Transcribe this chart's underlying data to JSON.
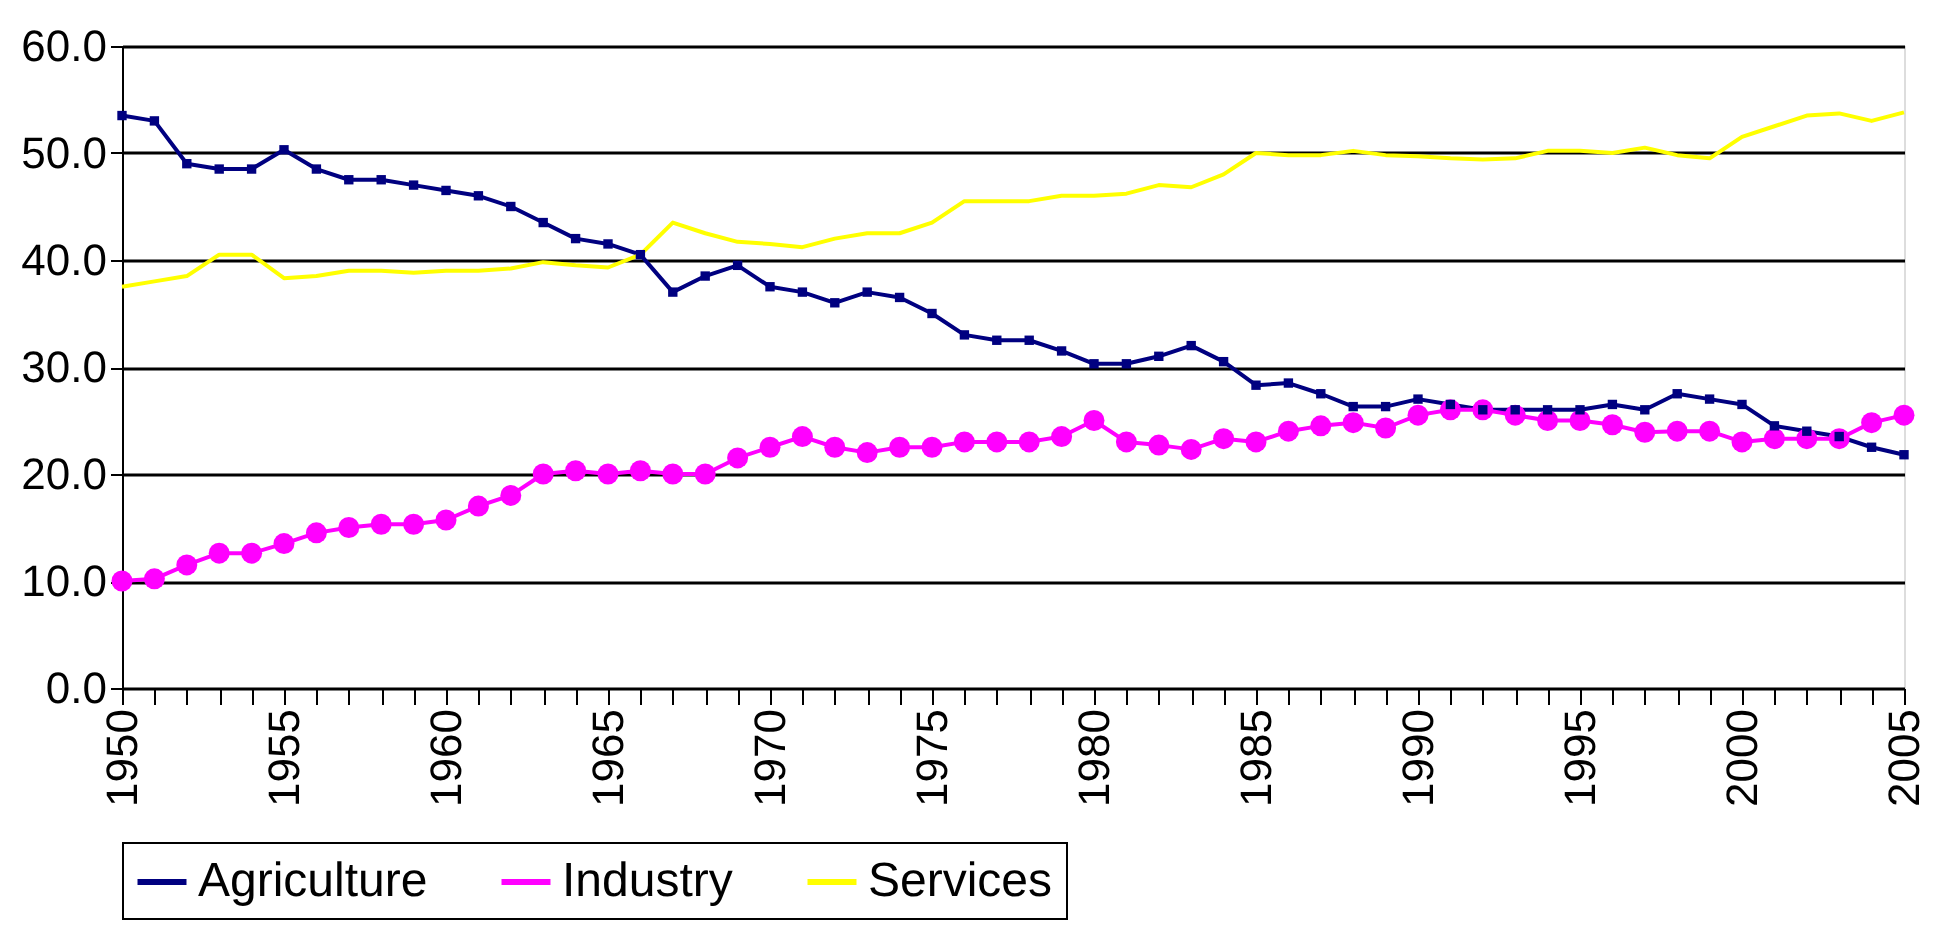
{
  "chart_data": {
    "type": "line",
    "x": [
      1950,
      1951,
      1952,
      1953,
      1954,
      1955,
      1956,
      1957,
      1958,
      1959,
      1960,
      1961,
      1962,
      1963,
      1964,
      1965,
      1966,
      1967,
      1968,
      1969,
      1970,
      1971,
      1972,
      1973,
      1974,
      1975,
      1976,
      1977,
      1978,
      1979,
      1980,
      1981,
      1982,
      1983,
      1984,
      1985,
      1986,
      1987,
      1988,
      1989,
      1990,
      1991,
      1992,
      1993,
      1994,
      1995,
      1996,
      1997,
      1998,
      1999,
      2000,
      2001,
      2002,
      2003,
      2004,
      2005
    ],
    "series": [
      {
        "name": "Agriculture",
        "color": "#000080",
        "marker": "square",
        "values": [
          53.5,
          53,
          49,
          48.5,
          48.5,
          50.3,
          48.5,
          47.5,
          47.5,
          47,
          46.5,
          46,
          45,
          43.5,
          42,
          41.5,
          40.5,
          37,
          38.5,
          39.5,
          37.5,
          37,
          36,
          37,
          36.5,
          35,
          33,
          32.5,
          32.5,
          31.5,
          30.3,
          30.3,
          31,
          32,
          30.5,
          28.3,
          28.5,
          27.5,
          26.3,
          26.3,
          27,
          26.5,
          26,
          26,
          26,
          26,
          26.5,
          26,
          27.5,
          27,
          26.5,
          24.5,
          24,
          23.5,
          22.5,
          21.8
        ]
      },
      {
        "name": "Industry",
        "color": "#ff00ff",
        "marker": "circle",
        "values": [
          10,
          10.2,
          11.5,
          12.6,
          12.6,
          13.5,
          14.5,
          15,
          15.3,
          15.3,
          15.7,
          17,
          18,
          20,
          20.3,
          20,
          20.3,
          20,
          20,
          21.5,
          22.5,
          23.5,
          22.5,
          22,
          22.5,
          22.5,
          23,
          23,
          23,
          23.5,
          25,
          23,
          22.7,
          22.3,
          23.3,
          23,
          24,
          24.5,
          24.8,
          24.3,
          25.5,
          26,
          26,
          25.5,
          25,
          25,
          24.6,
          23.9,
          24,
          24,
          23,
          23.3,
          23.3,
          23.3,
          24.8,
          25.5
        ]
      },
      {
        "name": "Services",
        "color": "#ffff00",
        "marker": "none",
        "values": [
          37.5,
          38,
          38.5,
          40.5,
          40.5,
          38.3,
          38.5,
          39,
          39,
          38.8,
          39,
          39,
          39.2,
          39.8,
          39.5,
          39.3,
          40.5,
          43.5,
          42.5,
          41.7,
          41.5,
          41.2,
          42,
          42.5,
          42.5,
          43.5,
          45.5,
          45.5,
          45.5,
          46,
          46,
          46.2,
          47,
          46.8,
          48,
          50,
          49.8,
          49.8,
          50.2,
          49.8,
          49.7,
          49.5,
          49.4,
          49.5,
          50.2,
          50.2,
          50,
          50.5,
          49.8,
          49.5,
          51.5,
          52.5,
          53.5,
          53.7,
          53,
          53.8
        ]
      }
    ],
    "xlim": [
      1950,
      2005
    ],
    "xticks": [
      1950,
      {
        "value": 1951,
        "label": null
      },
      {
        "value": 1952,
        "label": null
      },
      {
        "value": 1953,
        "label": null
      },
      {
        "value": 1954,
        "label": null
      },
      1955,
      {
        "value": 1956,
        "label": null
      },
      {
        "value": 1957,
        "label": null
      },
      {
        "value": 1958,
        "label": null
      },
      {
        "value": 1959,
        "label": null
      },
      1960,
      {
        "value": 1961,
        "label": null
      },
      {
        "value": 1962,
        "label": null
      },
      {
        "value": 1963,
        "label": null
      },
      {
        "value": 1964,
        "label": null
      },
      1965,
      {
        "value": 1966,
        "label": null
      },
      {
        "value": 1967,
        "label": null
      },
      {
        "value": 1968,
        "label": null
      },
      {
        "value": 1969,
        "label": null
      },
      1970,
      {
        "value": 1971,
        "label": null
      },
      {
        "value": 1972,
        "label": null
      },
      {
        "value": 1973,
        "label": null
      },
      {
        "value": 1974,
        "label": null
      },
      1975,
      {
        "value": 1976,
        "label": null
      },
      {
        "value": 1977,
        "label": null
      },
      {
        "value": 1978,
        "label": null
      },
      {
        "value": 1979,
        "label": null
      },
      1980,
      {
        "value": 1981,
        "label": null
      },
      {
        "value": 1982,
        "label": null
      },
      {
        "value": 1983,
        "label": null
      },
      {
        "value": 1984,
        "label": null
      },
      1985,
      {
        "value": 1986,
        "label": null
      },
      {
        "value": 1987,
        "label": null
      },
      {
        "value": 1988,
        "label": null
      },
      {
        "value": 1989,
        "label": null
      },
      1990,
      {
        "value": 1991,
        "label": null
      },
      {
        "value": 1992,
        "label": null
      },
      {
        "value": 1993,
        "label": null
      },
      {
        "value": 1994,
        "label": null
      },
      1995,
      {
        "value": 1996,
        "label": null
      },
      {
        "value": 1997,
        "label": null
      },
      {
        "value": 1998,
        "label": null
      },
      {
        "value": 1999,
        "label": null
      },
      2000,
      {
        "value": 2001,
        "label": null
      },
      {
        "value": 2002,
        "label": null
      },
      {
        "value": 2003,
        "label": null
      },
      {
        "value": 2004,
        "label": null
      },
      2005
    ],
    "ylim": [
      0,
      60
    ],
    "yticks": [
      {
        "value": 0,
        "label": "0.0"
      },
      {
        "value": 10,
        "label": "10.0"
      },
      {
        "value": 20,
        "label": "20.0"
      },
      {
        "value": 30,
        "label": "30.0"
      },
      {
        "value": 40,
        "label": "40.0"
      },
      {
        "value": 50,
        "label": "50.0"
      },
      {
        "value": 60,
        "label": "60.0"
      }
    ],
    "grid": "y",
    "legend": "bottom",
    "line_style": "solid"
  }
}
